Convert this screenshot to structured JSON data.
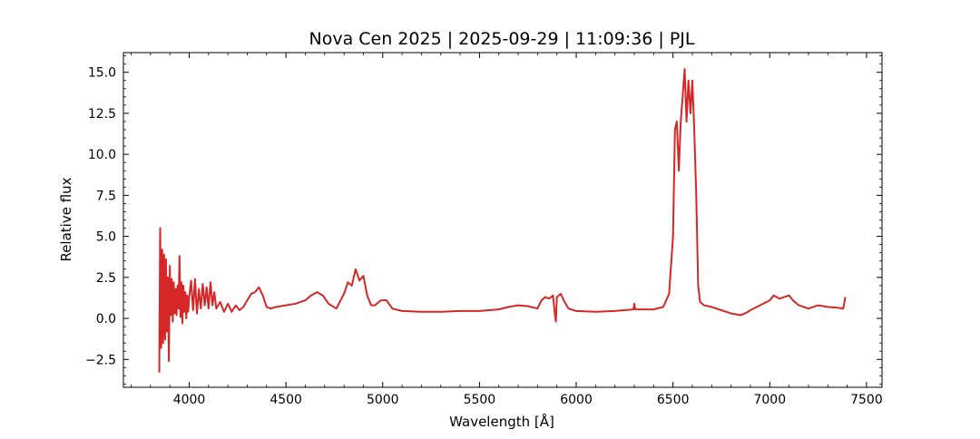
{
  "chart_data": {
    "type": "line",
    "title": "Nova Cen 2025 | 2025-09-29 | 11:09:36 | PJL",
    "xlabel": "Wavelength [Å]",
    "ylabel": "Relative flux",
    "xlim": [
      3660,
      7580
    ],
    "ylim": [
      -4.2,
      16.2
    ],
    "grid": false,
    "line_color": "#d62728",
    "x_ticks": [
      {
        "value": 4000,
        "label": "4000"
      },
      {
        "value": 4500,
        "label": "4500"
      },
      {
        "value": 5000,
        "label": "5000"
      },
      {
        "value": 5500,
        "label": "5500"
      },
      {
        "value": 6000,
        "label": "6000"
      },
      {
        "value": 6500,
        "label": "6500"
      },
      {
        "value": 7000,
        "label": "7000"
      },
      {
        "value": 7500,
        "label": "7500"
      }
    ],
    "y_ticks": [
      {
        "value": -2.5,
        "label": "−2.5"
      },
      {
        "value": 0.0,
        "label": "0.0"
      },
      {
        "value": 2.5,
        "label": "2.5"
      },
      {
        "value": 5.0,
        "label": "5.0"
      },
      {
        "value": 7.5,
        "label": "7.5"
      },
      {
        "value": 10.0,
        "label": "10.0"
      },
      {
        "value": 12.5,
        "label": "12.5"
      },
      {
        "value": 15.0,
        "label": "15.0"
      }
    ],
    "series": [
      {
        "x": [
          3845,
          3850,
          3855,
          3860,
          3865,
          3870,
          3875,
          3880,
          3885,
          3890,
          3895,
          3900,
          3905,
          3910,
          3915,
          3920,
          3925,
          3930,
          3935,
          3940,
          3945,
          3950,
          3955,
          3960,
          3965,
          3970,
          3975,
          3980,
          3985,
          3990,
          3995,
          4000,
          4010,
          4020,
          4030,
          4040,
          4050,
          4060,
          4070,
          4080,
          4090,
          4100,
          4110,
          4120,
          4130,
          4140,
          4160,
          4180,
          4200,
          4220,
          4240,
          4260,
          4280,
          4300,
          4320,
          4340,
          4360,
          4380,
          4400,
          4420,
          4450,
          4500,
          4550,
          4600,
          4630,
          4660,
          4690,
          4720,
          4760,
          4800,
          4820,
          4840,
          4860,
          4880,
          4900,
          4920,
          4940,
          4960,
          4990,
          5020,
          5050,
          5100,
          5200,
          5300,
          5400,
          5500,
          5600,
          5650,
          5700,
          5750,
          5800,
          5820,
          5840,
          5860,
          5880,
          5890,
          5895,
          5900,
          5920,
          5940,
          5960,
          6000,
          6100,
          6200,
          6295,
          6300,
          6305,
          6400,
          6450,
          6480,
          6500,
          6510,
          6520,
          6530,
          6540,
          6550,
          6560,
          6570,
          6580,
          6590,
          6600,
          6610,
          6620,
          6630,
          6640,
          6660,
          6700,
          6750,
          6800,
          6850,
          6880,
          6900,
          6950,
          7000,
          7020,
          7050,
          7100,
          7120,
          7150,
          7200,
          7250,
          7300,
          7350,
          7380,
          7390
        ],
        "y": [
          -3.3,
          5.5,
          -1.8,
          4.2,
          -1.5,
          3.9,
          -1.3,
          3.6,
          -0.8,
          2.5,
          -2.6,
          3.2,
          0.2,
          2.4,
          -0.2,
          2.2,
          0.3,
          1.8,
          0.2,
          2.0,
          0.6,
          3.8,
          0.1,
          2.2,
          -0.3,
          2.0,
          0.4,
          1.6,
          0.0,
          1.4,
          0.4,
          1.3,
          2.3,
          0.5,
          2.4,
          0.3,
          1.8,
          0.6,
          2.1,
          0.8,
          1.9,
          0.6,
          2.2,
          0.8,
          1.6,
          0.6,
          1.0,
          0.4,
          0.9,
          0.4,
          0.8,
          0.5,
          0.7,
          1.1,
          1.5,
          1.6,
          1.9,
          1.4,
          0.7,
          0.6,
          0.7,
          0.8,
          0.9,
          1.1,
          1.4,
          1.6,
          1.4,
          0.9,
          0.6,
          1.5,
          2.2,
          2.0,
          3.0,
          2.3,
          2.6,
          1.4,
          0.8,
          0.8,
          1.1,
          1.1,
          0.6,
          0.45,
          0.4,
          0.4,
          0.45,
          0.45,
          0.55,
          0.7,
          0.8,
          0.75,
          0.6,
          1.1,
          1.3,
          1.2,
          1.4,
          0.2,
          -0.2,
          1.3,
          1.5,
          1.0,
          0.6,
          0.45,
          0.4,
          0.45,
          0.55,
          0.9,
          0.55,
          0.55,
          0.7,
          1.5,
          5.0,
          11.5,
          12.0,
          9.0,
          12.0,
          13.5,
          15.2,
          12.0,
          14.5,
          12.5,
          14.5,
          11.5,
          7.5,
          2.0,
          1.0,
          0.8,
          0.7,
          0.5,
          0.3,
          0.2,
          0.35,
          0.5,
          0.8,
          1.1,
          1.4,
          1.2,
          1.4,
          1.1,
          0.8,
          0.6,
          0.8,
          0.7,
          0.65,
          0.6,
          1.3
        ]
      }
    ]
  }
}
